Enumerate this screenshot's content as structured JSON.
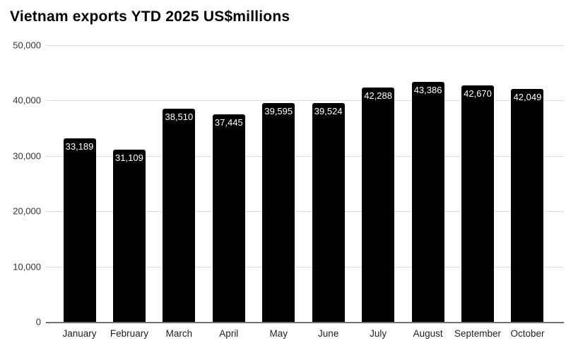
{
  "title": "Vietnam exports YTD 2025 US$millions",
  "colors": {
    "bar": "#000000",
    "bar_label": "#ffffff",
    "gridline": "#dcdcdc",
    "axis_line": "#6f6f6f",
    "y_label": "#333333",
    "x_label": "#1f1f1f",
    "background": "#ffffff",
    "title": "#000000"
  },
  "chart_data": {
    "type": "bar",
    "title": "Vietnam exports YTD 2025 US$millions",
    "categories": [
      "January",
      "February",
      "March",
      "April",
      "May",
      "June",
      "July",
      "August",
      "September",
      "October"
    ],
    "values": [
      33189,
      31109,
      38510,
      37445,
      39595,
      39524,
      42288,
      43386,
      42670,
      42049
    ],
    "value_labels": [
      "33,189",
      "31,109",
      "38,510",
      "37,445",
      "39,595",
      "39,524",
      "42,288",
      "43,386",
      "42,670",
      "42,049"
    ],
    "xlabel": "",
    "ylabel": "",
    "ylim": [
      0,
      50000
    ],
    "yticks": [
      0,
      10000,
      20000,
      30000,
      40000,
      50000
    ],
    "ytick_labels": [
      "0",
      "10,000",
      "20,000",
      "30,000",
      "40,000",
      "50,000"
    ],
    "grid": true,
    "legend": false,
    "bar_label_position": "inside-top"
  }
}
